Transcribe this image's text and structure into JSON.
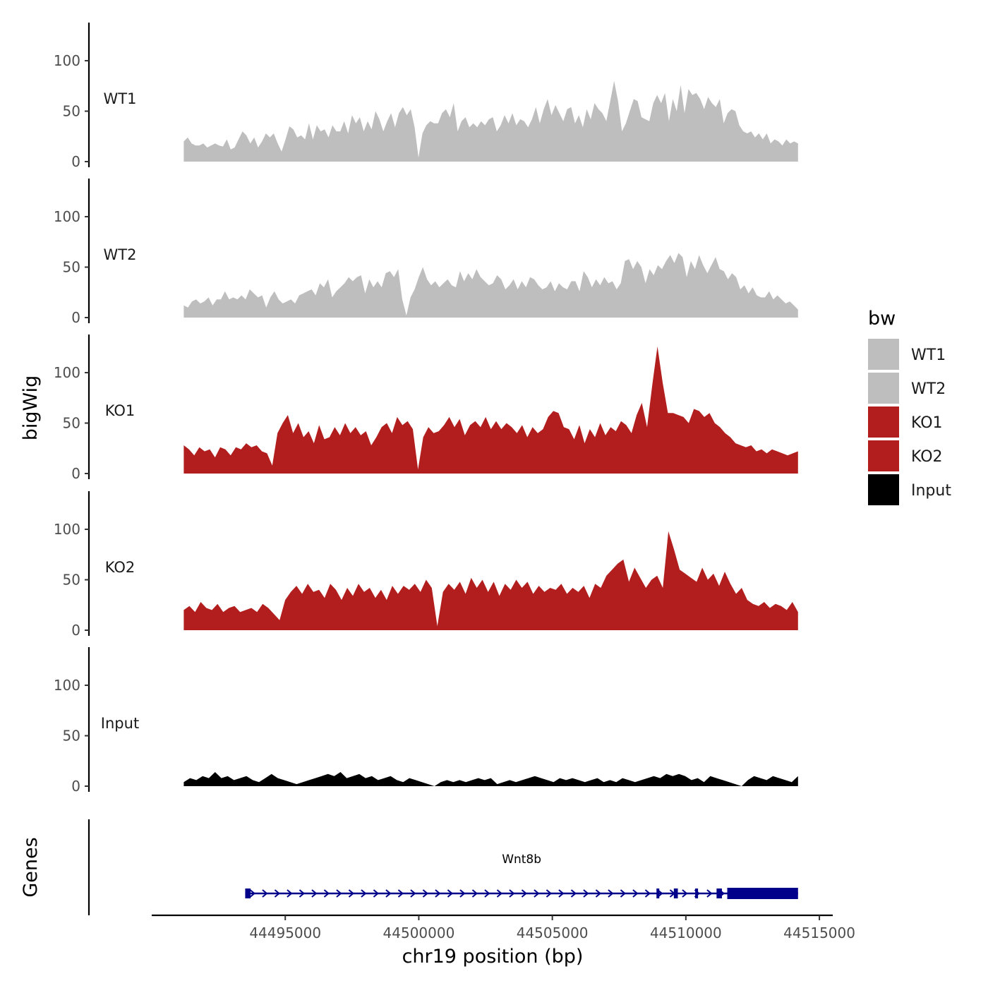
{
  "chart_data": {
    "type": "area",
    "chromosome": "chr19",
    "xlabel": "chr19 position (bp)",
    "ylabel": "bigWig",
    "gene_panel_label": "Genes",
    "xlim": [
      44490000,
      44515500
    ],
    "x_ticks": [
      44495000,
      44500000,
      44505000,
      44510000,
      44515000
    ],
    "x_tick_labels": [
      "44495000",
      "44500000",
      "44505000",
      "44510000",
      "44515000"
    ],
    "ylim": [
      0,
      135
    ],
    "y_ticks": [
      0,
      50,
      100
    ],
    "y_tick_labels": [
      "0",
      "50",
      "100"
    ],
    "track_x_start": 44491200,
    "track_x_end": 44514200,
    "legend": {
      "title": "bw",
      "position": "right",
      "entries": [
        {
          "label": "WT1",
          "color": "#bebebe"
        },
        {
          "label": "WT2",
          "color": "#bebebe"
        },
        {
          "label": "KO1",
          "color": "#b21e1e"
        },
        {
          "label": "KO2",
          "color": "#b21e1e"
        },
        {
          "label": "Input",
          "color": "#000000"
        }
      ]
    },
    "series": [
      {
        "name": "WT1",
        "color": "#bebebe",
        "values": [
          20,
          24,
          18,
          16,
          16,
          18,
          14,
          16,
          18,
          16,
          15,
          22,
          12,
          14,
          22,
          30,
          26,
          18,
          24,
          14,
          20,
          28,
          24,
          28,
          18,
          10,
          22,
          35,
          32,
          24,
          26,
          22,
          38,
          22,
          36,
          30,
          32,
          24,
          36,
          30,
          30,
          40,
          28,
          46,
          38,
          44,
          30,
          40,
          32,
          50,
          42,
          30,
          40,
          48,
          34,
          48,
          54,
          46,
          52,
          34,
          4,
          28,
          36,
          40,
          38,
          38,
          48,
          52,
          44,
          58,
          30,
          40,
          44,
          34,
          38,
          34,
          40,
          36,
          42,
          44,
          30,
          36,
          46,
          38,
          48,
          36,
          42,
          40,
          34,
          42,
          54,
          38,
          52,
          62,
          46,
          56,
          48,
          40,
          52,
          54,
          38,
          46,
          34,
          52,
          42,
          58,
          52,
          48,
          40,
          60,
          80,
          60,
          30,
          38,
          50,
          62,
          60,
          44,
          42,
          40,
          58,
          66,
          58,
          68,
          40,
          62,
          50,
          76,
          48,
          72,
          66,
          68,
          62,
          52,
          64,
          58,
          54,
          62,
          38,
          48,
          52,
          50,
          36,
          30,
          28,
          30,
          24,
          28,
          22,
          28,
          18,
          22,
          20,
          16,
          22,
          18,
          20,
          18
        ]
      },
      {
        "name": "WT2",
        "color": "#bebebe",
        "values": [
          12,
          10,
          16,
          18,
          14,
          16,
          20,
          12,
          18,
          18,
          26,
          18,
          20,
          18,
          22,
          18,
          28,
          24,
          20,
          22,
          10,
          20,
          26,
          18,
          14,
          16,
          18,
          14,
          22,
          24,
          26,
          28,
          22,
          34,
          30,
          38,
          20,
          26,
          30,
          34,
          40,
          36,
          40,
          42,
          24,
          38,
          30,
          36,
          30,
          44,
          46,
          40,
          48,
          18,
          2,
          20,
          28,
          40,
          50,
          38,
          32,
          36,
          30,
          34,
          38,
          32,
          30,
          46,
          36,
          44,
          38,
          48,
          40,
          36,
          32,
          34,
          42,
          38,
          28,
          32,
          38,
          28,
          36,
          30,
          40,
          38,
          32,
          28,
          30,
          36,
          26,
          34,
          30,
          28,
          36,
          36,
          26,
          46,
          40,
          30,
          38,
          32,
          40,
          34,
          36,
          28,
          34,
          56,
          58,
          48,
          56,
          50,
          34,
          48,
          42,
          52,
          48,
          56,
          62,
          54,
          64,
          60,
          40,
          56,
          48,
          62,
          52,
          44,
          52,
          60,
          48,
          46,
          38,
          44,
          40,
          28,
          32,
          24,
          30,
          22,
          20,
          20,
          26,
          18,
          22,
          18,
          14,
          16,
          12,
          8
        ]
      },
      {
        "name": "KO1",
        "color": "#b21e1e",
        "values": [
          28,
          24,
          18,
          26,
          22,
          24,
          16,
          26,
          24,
          18,
          26,
          24,
          30,
          26,
          28,
          22,
          20,
          8,
          40,
          50,
          58,
          40,
          50,
          36,
          42,
          30,
          48,
          34,
          36,
          46,
          38,
          50,
          40,
          46,
          38,
          42,
          28,
          36,
          46,
          50,
          40,
          56,
          48,
          52,
          44,
          4,
          36,
          46,
          40,
          42,
          48,
          56,
          46,
          54,
          38,
          48,
          52,
          46,
          56,
          44,
          52,
          44,
          50,
          46,
          40,
          48,
          36,
          46,
          40,
          44,
          56,
          62,
          60,
          46,
          44,
          34,
          48,
          30,
          44,
          36,
          50,
          38,
          46,
          42,
          52,
          48,
          40,
          58,
          70,
          46,
          88,
          126,
          90,
          60,
          60,
          58,
          56,
          50,
          64,
          62,
          56,
          60,
          50,
          46,
          40,
          36,
          30,
          28,
          26,
          28,
          22,
          24,
          20,
          24,
          22,
          20,
          18,
          20,
          22
        ]
      },
      {
        "name": "KO2",
        "color": "#b21e1e",
        "values": [
          20,
          24,
          18,
          28,
          22,
          20,
          26,
          18,
          22,
          24,
          18,
          20,
          22,
          18,
          26,
          22,
          16,
          10,
          30,
          38,
          44,
          36,
          46,
          38,
          40,
          32,
          46,
          40,
          30,
          42,
          34,
          46,
          38,
          42,
          32,
          40,
          30,
          44,
          36,
          44,
          40,
          46,
          38,
          50,
          42,
          4,
          38,
          46,
          40,
          48,
          36,
          52,
          42,
          50,
          38,
          48,
          34,
          46,
          40,
          50,
          42,
          48,
          36,
          44,
          38,
          42,
          40,
          46,
          36,
          42,
          38,
          44,
          32,
          46,
          42,
          54,
          60,
          66,
          70,
          48,
          62,
          52,
          42,
          50,
          54,
          42,
          98,
          80,
          60,
          56,
          52,
          48,
          62,
          50,
          56,
          44,
          58,
          46,
          36,
          42,
          30,
          26,
          24,
          28,
          22,
          26,
          24,
          20,
          28,
          18
        ]
      },
      {
        "name": "Input",
        "color": "#000000",
        "values": [
          4,
          8,
          6,
          10,
          8,
          14,
          8,
          10,
          6,
          8,
          10,
          6,
          4,
          8,
          12,
          8,
          6,
          4,
          2,
          4,
          6,
          8,
          10,
          12,
          10,
          14,
          8,
          10,
          12,
          8,
          10,
          6,
          8,
          10,
          6,
          4,
          8,
          6,
          4,
          2,
          0,
          4,
          6,
          4,
          6,
          4,
          6,
          8,
          6,
          8,
          2,
          4,
          6,
          4,
          6,
          8,
          10,
          8,
          6,
          4,
          8,
          6,
          8,
          6,
          4,
          6,
          8,
          4,
          6,
          4,
          8,
          6,
          4,
          6,
          8,
          10,
          8,
          12,
          10,
          12,
          10,
          6,
          8,
          4,
          10,
          8,
          6,
          4,
          2,
          0,
          6,
          10,
          8,
          6,
          10,
          8,
          6,
          4,
          10
        ]
      }
    ],
    "genes": [
      {
        "name": "Wnt8b",
        "start": 44493500,
        "end": 44514200,
        "strand": "+",
        "exons": [
          [
            44493500,
            44493700
          ],
          [
            44508900,
            44509000
          ],
          [
            44509550,
            44509700
          ],
          [
            44510350,
            44510450
          ],
          [
            44511150,
            44511350
          ],
          [
            44511550,
            44514200
          ]
        ]
      }
    ]
  }
}
